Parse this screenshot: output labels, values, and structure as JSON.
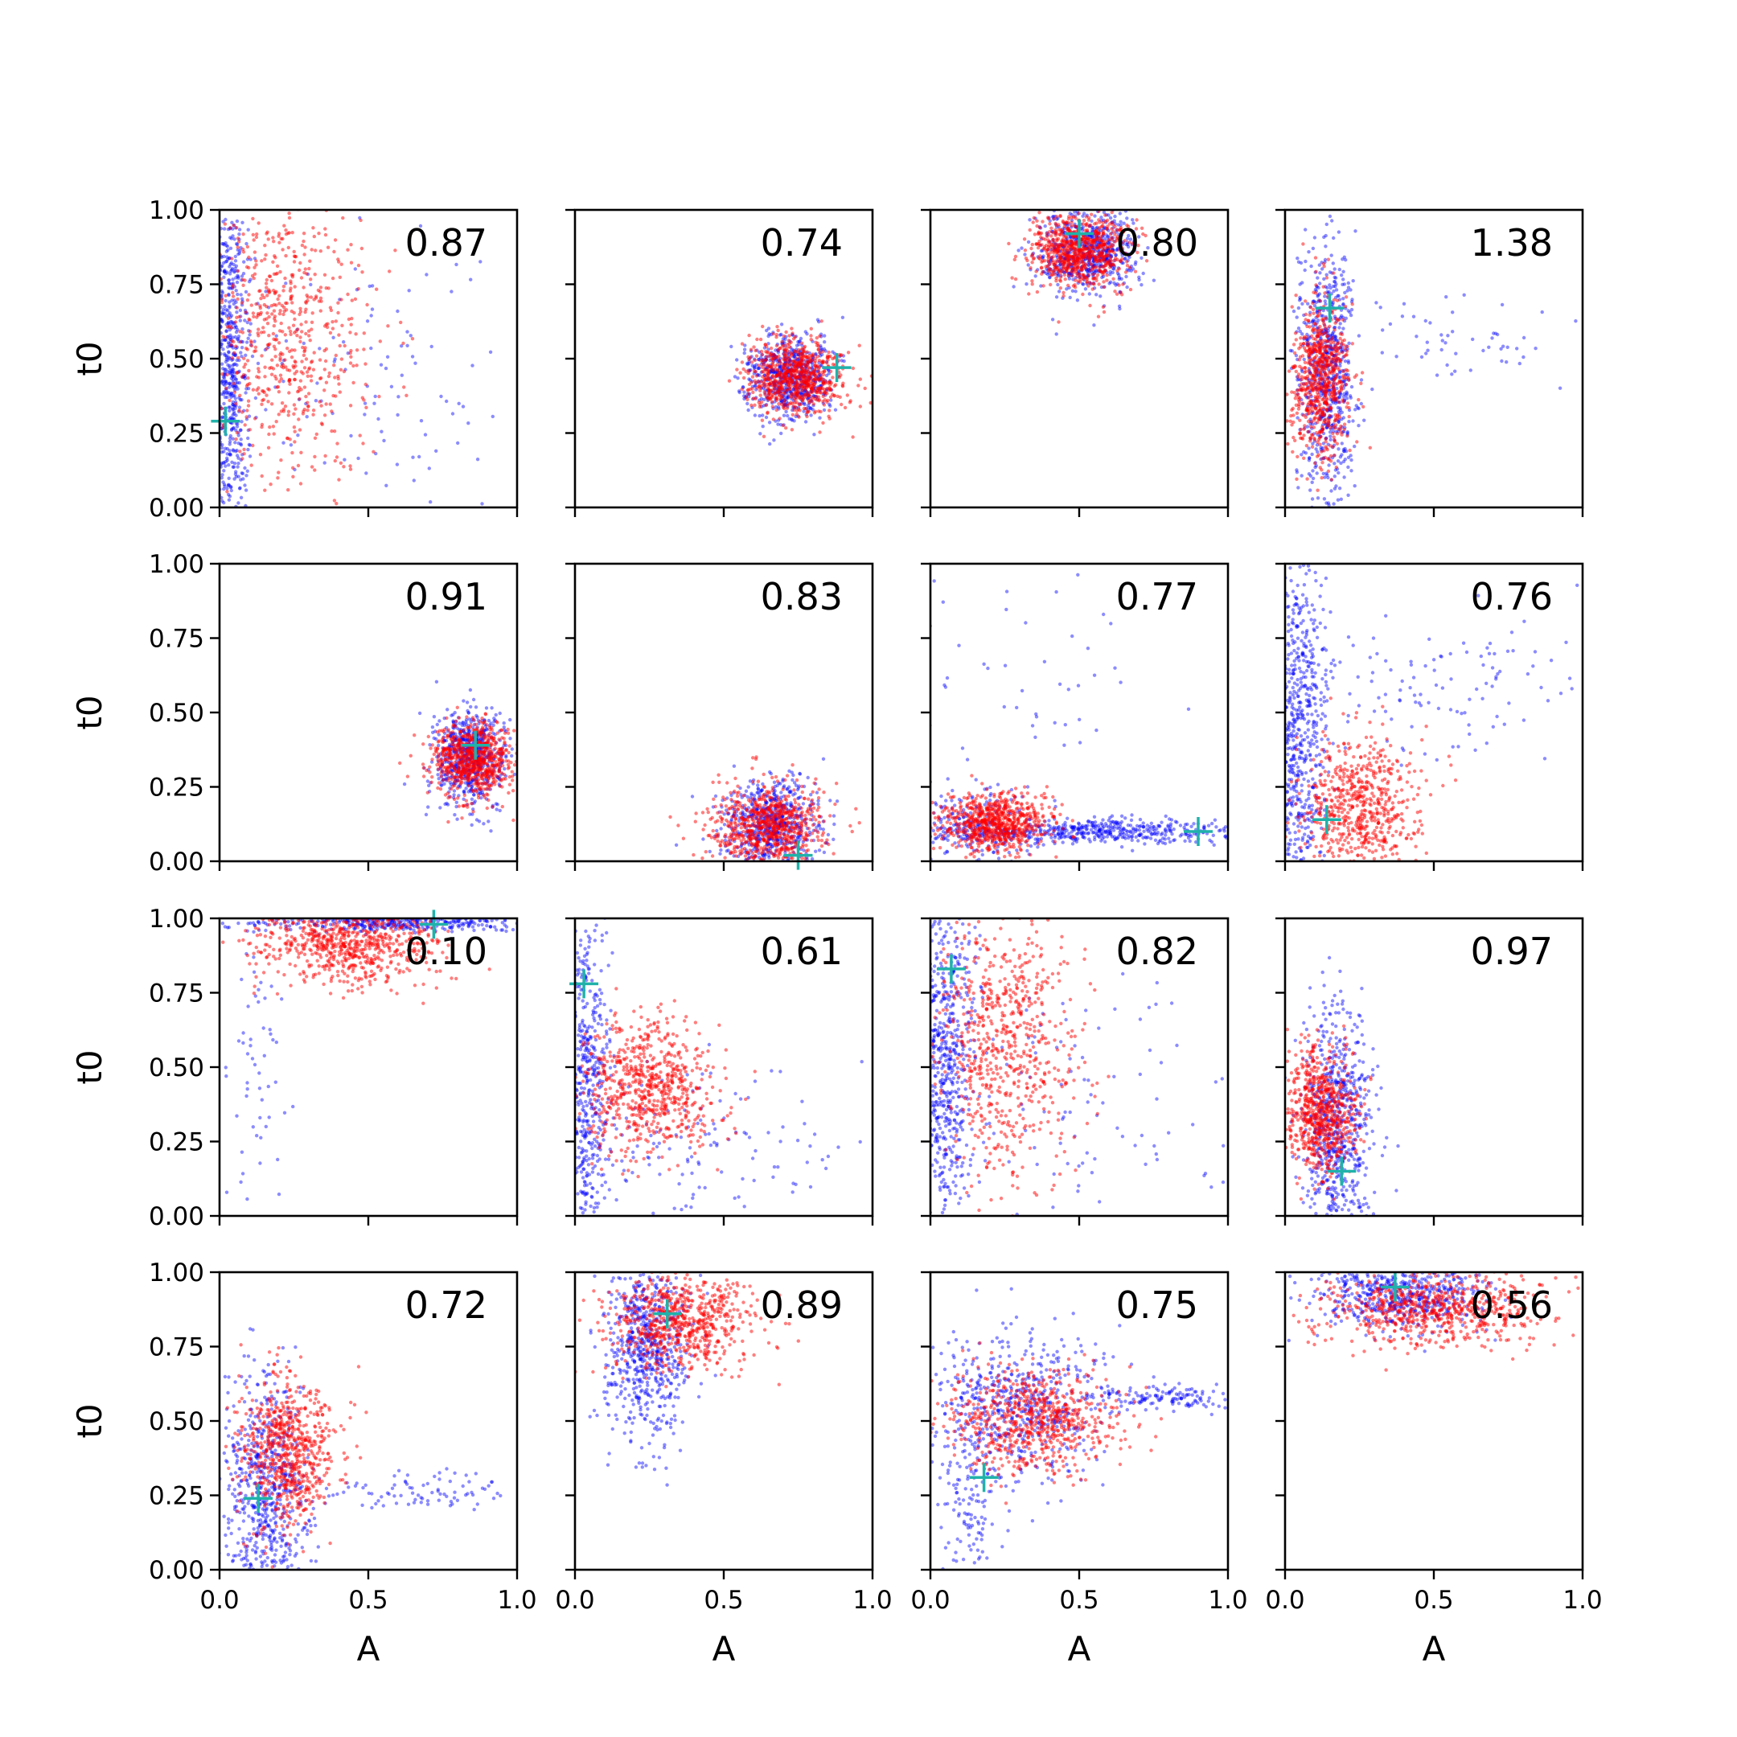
{
  "chart_data": {
    "type": "scatter",
    "layout": {
      "rows": 4,
      "cols": 4
    },
    "xlabel": "A",
    "ylabel": "t0",
    "xlim": [
      0,
      1
    ],
    "ylim": [
      0,
      1
    ],
    "x_ticks": [
      "0.0",
      "0.5",
      "1.0"
    ],
    "y_ticks": [
      "0.00",
      "0.25",
      "0.50",
      "0.75",
      "1.00"
    ],
    "colors": {
      "series_1": "#0000ff",
      "series_2": "#ff0000",
      "marker": "#20b2aa"
    },
    "panels": [
      {
        "value": "0.87",
        "marker": [
          0.02,
          0.29
        ],
        "clouds": [
          {
            "color": "blue",
            "n": 650,
            "cx": 0.03,
            "cy": 0.5,
            "sx": 0.04,
            "sy": 0.3,
            "tail": 0.4
          },
          {
            "color": "blue",
            "n": 120,
            "cx": 0.45,
            "cy": 0.45,
            "sx": 0.25,
            "sy": 0.25
          },
          {
            "color": "red",
            "n": 650,
            "cx": 0.22,
            "cy": 0.58,
            "sx": 0.14,
            "sy": 0.24
          }
        ]
      },
      {
        "value": "0.74",
        "marker": [
          0.88,
          0.47
        ],
        "clouds": [
          {
            "color": "blue",
            "n": 650,
            "cx": 0.72,
            "cy": 0.44,
            "sx": 0.07,
            "sy": 0.07
          },
          {
            "color": "red",
            "n": 750,
            "cx": 0.74,
            "cy": 0.44,
            "sx": 0.08,
            "sy": 0.06
          }
        ]
      },
      {
        "value": "0.80",
        "marker": [
          0.5,
          0.92
        ],
        "clouds": [
          {
            "color": "blue",
            "n": 650,
            "cx": 0.52,
            "cy": 0.86,
            "sx": 0.08,
            "sy": 0.07
          },
          {
            "color": "red",
            "n": 750,
            "cx": 0.5,
            "cy": 0.86,
            "sx": 0.08,
            "sy": 0.06
          }
        ]
      },
      {
        "value": "1.38",
        "marker": [
          0.15,
          0.67
        ],
        "clouds": [
          {
            "color": "blue",
            "n": 700,
            "cx": 0.14,
            "cy": 0.45,
            "sx": 0.05,
            "sy": 0.22
          },
          {
            "color": "blue",
            "n": 60,
            "cx": 0.5,
            "cy": 0.55,
            "sx": 0.2,
            "sy": 0.06
          },
          {
            "color": "red",
            "n": 700,
            "cx": 0.12,
            "cy": 0.43,
            "sx": 0.05,
            "sy": 0.13
          }
        ]
      },
      {
        "value": "0.91",
        "marker": [
          0.86,
          0.39
        ],
        "clouds": [
          {
            "color": "blue",
            "n": 650,
            "cx": 0.84,
            "cy": 0.35,
            "sx": 0.06,
            "sy": 0.08
          },
          {
            "color": "red",
            "n": 750,
            "cx": 0.85,
            "cy": 0.34,
            "sx": 0.07,
            "sy": 0.06
          }
        ]
      },
      {
        "value": "0.83",
        "marker": [
          0.75,
          0.02
        ],
        "clouds": [
          {
            "color": "blue",
            "n": 650,
            "cx": 0.66,
            "cy": 0.12,
            "sx": 0.08,
            "sy": 0.08
          },
          {
            "color": "red",
            "n": 750,
            "cx": 0.65,
            "cy": 0.12,
            "sx": 0.09,
            "sy": 0.07
          }
        ]
      },
      {
        "value": "0.77",
        "marker": [
          0.9,
          0.1
        ],
        "clouds": [
          {
            "color": "blue",
            "n": 500,
            "cx": 0.55,
            "cy": 0.1,
            "sx": 0.25,
            "sy": 0.02
          },
          {
            "color": "blue",
            "n": 200,
            "cx": 0.15,
            "cy": 0.12,
            "sx": 0.1,
            "sy": 0.07
          },
          {
            "color": "blue",
            "n": 60,
            "cx": 0.3,
            "cy": 0.55,
            "sx": 0.2,
            "sy": 0.25
          },
          {
            "color": "red",
            "n": 750,
            "cx": 0.22,
            "cy": 0.13,
            "sx": 0.09,
            "sy": 0.05
          }
        ]
      },
      {
        "value": "0.76",
        "marker": [
          0.14,
          0.14
        ],
        "clouds": [
          {
            "color": "blue",
            "n": 650,
            "cx": 0.05,
            "cy": 0.45,
            "sx": 0.05,
            "sy": 0.3
          },
          {
            "color": "blue",
            "n": 120,
            "cx": 0.55,
            "cy": 0.6,
            "sx": 0.25,
            "sy": 0.12
          },
          {
            "color": "red",
            "n": 650,
            "cx": 0.25,
            "cy": 0.18,
            "sx": 0.1,
            "sy": 0.12
          }
        ]
      },
      {
        "value": "0.10",
        "marker": [
          0.72,
          0.98
        ],
        "clouds": [
          {
            "color": "blue",
            "n": 400,
            "cx": 0.6,
            "cy": 0.985,
            "sx": 0.25,
            "sy": 0.015
          },
          {
            "color": "blue",
            "n": 60,
            "cx": 0.12,
            "cy": 0.5,
            "sx": 0.05,
            "sy": 0.3
          },
          {
            "color": "red",
            "n": 750,
            "cx": 0.42,
            "cy": 0.92,
            "sx": 0.15,
            "sy": 0.07
          }
        ]
      },
      {
        "value": "0.61",
        "marker": [
          0.03,
          0.78
        ],
        "clouds": [
          {
            "color": "blue",
            "n": 550,
            "cx": 0.04,
            "cy": 0.45,
            "sx": 0.04,
            "sy": 0.3
          },
          {
            "color": "blue",
            "n": 150,
            "cx": 0.4,
            "cy": 0.25,
            "sx": 0.25,
            "sy": 0.15
          },
          {
            "color": "red",
            "n": 700,
            "cx": 0.25,
            "cy": 0.43,
            "sx": 0.11,
            "sy": 0.11
          }
        ]
      },
      {
        "value": "0.82",
        "marker": [
          0.07,
          0.83
        ],
        "clouds": [
          {
            "color": "blue",
            "n": 650,
            "cx": 0.05,
            "cy": 0.5,
            "sx": 0.05,
            "sy": 0.3
          },
          {
            "color": "blue",
            "n": 100,
            "cx": 0.5,
            "cy": 0.4,
            "sx": 0.25,
            "sy": 0.25
          },
          {
            "color": "red",
            "n": 700,
            "cx": 0.25,
            "cy": 0.6,
            "sx": 0.12,
            "sy": 0.22
          }
        ]
      },
      {
        "value": "0.97",
        "marker": [
          0.19,
          0.15
        ],
        "clouds": [
          {
            "color": "blue",
            "n": 700,
            "cx": 0.17,
            "cy": 0.3,
            "sx": 0.06,
            "sy": 0.2
          },
          {
            "color": "red",
            "n": 700,
            "cx": 0.12,
            "cy": 0.35,
            "sx": 0.06,
            "sy": 0.1
          }
        ]
      },
      {
        "value": "0.72",
        "marker": [
          0.13,
          0.24
        ],
        "clouds": [
          {
            "color": "blue",
            "n": 650,
            "cx": 0.15,
            "cy": 0.25,
            "sx": 0.07,
            "sy": 0.2
          },
          {
            "color": "blue",
            "n": 90,
            "cx": 0.7,
            "cy": 0.26,
            "sx": 0.2,
            "sy": 0.03
          },
          {
            "color": "red",
            "n": 700,
            "cx": 0.24,
            "cy": 0.4,
            "sx": 0.08,
            "sy": 0.12
          }
        ]
      },
      {
        "value": "0.89",
        "marker": [
          0.31,
          0.86
        ],
        "clouds": [
          {
            "color": "blue",
            "n": 650,
            "cx": 0.24,
            "cy": 0.75,
            "sx": 0.07,
            "sy": 0.16
          },
          {
            "color": "red",
            "n": 700,
            "cx": 0.35,
            "cy": 0.83,
            "sx": 0.12,
            "sy": 0.08
          }
        ]
      },
      {
        "value": "0.75",
        "marker": [
          0.18,
          0.31
        ],
        "clouds": [
          {
            "color": "blue",
            "n": 550,
            "cx": 0.3,
            "cy": 0.55,
            "sx": 0.15,
            "sy": 0.12
          },
          {
            "color": "blue",
            "n": 150,
            "cx": 0.8,
            "cy": 0.58,
            "sx": 0.15,
            "sy": 0.02
          },
          {
            "color": "blue",
            "n": 150,
            "cx": 0.13,
            "cy": 0.3,
            "sx": 0.05,
            "sy": 0.2
          },
          {
            "color": "red",
            "n": 700,
            "cx": 0.35,
            "cy": 0.5,
            "sx": 0.15,
            "sy": 0.09
          }
        ]
      },
      {
        "value": "0.56",
        "marker": [
          0.37,
          0.95
        ],
        "clouds": [
          {
            "color": "blue",
            "n": 600,
            "cx": 0.4,
            "cy": 0.93,
            "sx": 0.15,
            "sy": 0.06
          },
          {
            "color": "red",
            "n": 700,
            "cx": 0.5,
            "cy": 0.87,
            "sx": 0.18,
            "sy": 0.06
          }
        ]
      }
    ]
  }
}
